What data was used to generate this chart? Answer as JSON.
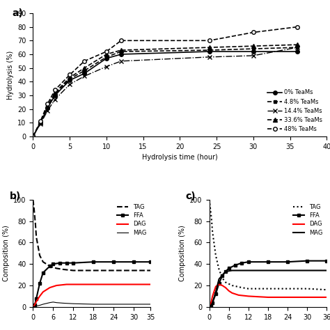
{
  "panel_a": {
    "xlabel": "Hydrolysis time (hour)",
    "ylabel": "Hydrolysis (%)",
    "xlim": [
      0,
      40
    ],
    "ylim": [
      0,
      90
    ],
    "xticks": [
      0,
      5,
      10,
      15,
      20,
      25,
      30,
      35,
      40
    ],
    "yticks": [
      0,
      10,
      20,
      30,
      40,
      50,
      60,
      70,
      80,
      90
    ],
    "series": [
      {
        "label": "0% TeaMs",
        "x": [
          0,
          1,
          2,
          3,
          5,
          7,
          10,
          12,
          24,
          30,
          36
        ],
        "y": [
          0,
          10,
          21,
          30,
          41,
          46,
          57,
          60,
          62,
          62,
          62
        ],
        "color": "black",
        "linestyle": "-",
        "marker": "o",
        "markersize": 4,
        "linewidth": 1.2,
        "mfc": "black"
      },
      {
        "label": "4.8% TeaMs",
        "x": [
          0,
          1,
          2,
          3,
          5,
          7,
          10,
          12,
          24,
          30,
          36
        ],
        "y": [
          0,
          10,
          22,
          31,
          42,
          48,
          58,
          62,
          63,
          64,
          65
        ],
        "color": "black",
        "linestyle": "--",
        "marker": "s",
        "markersize": 3,
        "linewidth": 1.2,
        "mfc": "black"
      },
      {
        "label": "14.4% TeaMs",
        "x": [
          0,
          1,
          2,
          3,
          5,
          7,
          10,
          12,
          24,
          30,
          36
        ],
        "y": [
          0,
          9,
          19,
          27,
          38,
          44,
          51,
          55,
          58,
          59,
          65
        ],
        "color": "black",
        "linestyle": "-.",
        "marker": "x",
        "markersize": 4,
        "linewidth": 1.0,
        "mfc": "black"
      },
      {
        "label": "33.6% TeaMs",
        "x": [
          0,
          1,
          2,
          3,
          5,
          7,
          10,
          12,
          24,
          30,
          36
        ],
        "y": [
          0,
          10,
          22,
          32,
          43,
          50,
          60,
          63,
          65,
          66,
          67
        ],
        "color": "black",
        "linestyle": "--",
        "marker": "^",
        "markersize": 4,
        "linewidth": 1.2,
        "mfc": "black"
      },
      {
        "label": "48% TeaMs",
        "x": [
          0,
          1,
          2,
          3,
          5,
          7,
          10,
          12,
          24,
          30,
          36
        ],
        "y": [
          0,
          11,
          24,
          34,
          45,
          55,
          62,
          70,
          70,
          76,
          80
        ],
        "color": "black",
        "linestyle": "--",
        "marker": "o",
        "markersize": 4,
        "linewidth": 1.2,
        "mfc": "white"
      }
    ]
  },
  "panel_b": {
    "xlabel": "",
    "ylabel": "Composition (%)",
    "xlim": [
      0,
      35
    ],
    "ylim": [
      0,
      100
    ],
    "xticks": [
      0,
      6,
      12,
      18,
      24,
      30,
      35
    ],
    "yticks": [
      0,
      20,
      40,
      60,
      80,
      100
    ],
    "series": [
      {
        "label": "TAG",
        "x": [
          0,
          0.3,
          0.7,
          1,
          2,
          3,
          5,
          7,
          9,
          12,
          18,
          24,
          30,
          35
        ],
        "y": [
          100,
          92,
          78,
          65,
          48,
          42,
          38,
          36,
          35,
          34,
          34,
          34,
          34,
          34
        ],
        "color": "black",
        "linestyle": "--",
        "marker": null,
        "linewidth": 1.5
      },
      {
        "label": "FFA",
        "x": [
          0,
          0.5,
          1,
          2,
          3,
          5,
          6,
          8,
          10,
          12,
          18,
          24,
          30,
          35
        ],
        "y": [
          0,
          2,
          8,
          22,
          32,
          38,
          40,
          41,
          41,
          41,
          42,
          42,
          42,
          42
        ],
        "color": "black",
        "linestyle": "-",
        "marker": "s",
        "markersize": 3,
        "linewidth": 1.5
      },
      {
        "label": "DAG",
        "x": [
          0,
          0.5,
          1,
          2,
          3,
          5,
          7,
          10,
          12,
          18,
          24,
          30,
          35
        ],
        "y": [
          0,
          2,
          5,
          10,
          14,
          18,
          20,
          21,
          21,
          21,
          21,
          21,
          21
        ],
        "color": "red",
        "linestyle": "-",
        "marker": null,
        "linewidth": 1.5
      },
      {
        "label": "MAG",
        "x": [
          0,
          0.5,
          1,
          2,
          3,
          5,
          6,
          7,
          9,
          12,
          18,
          24,
          30,
          35
        ],
        "y": [
          0,
          0.3,
          0.8,
          1.5,
          2.5,
          4,
          4.5,
          4,
          3.5,
          3,
          2.5,
          2.5,
          2.5,
          2.5
        ],
        "color": "black",
        "linestyle": "-",
        "marker": null,
        "linewidth": 0.8
      }
    ]
  },
  "panel_c": {
    "xlabel": "",
    "ylabel": "Composition (%)",
    "xlim": [
      0,
      36
    ],
    "ylim": [
      0,
      100
    ],
    "xticks": [
      0,
      6,
      12,
      18,
      24,
      30,
      36
    ],
    "yticks": [
      0,
      20,
      40,
      60,
      80,
      100
    ],
    "series": [
      {
        "label": "TAG",
        "x": [
          0,
          0.3,
          0.7,
          1,
          2,
          3,
          4,
          5,
          7,
          10,
          12,
          18,
          24,
          30,
          36
        ],
        "y": [
          100,
          93,
          82,
          70,
          48,
          35,
          27,
          23,
          20,
          18,
          17,
          17,
          17,
          17,
          16
        ],
        "color": "black",
        "linestyle": ":",
        "marker": null,
        "linewidth": 1.5
      },
      {
        "label": "FFA",
        "x": [
          0,
          0.5,
          1,
          2,
          3,
          4,
          5,
          6,
          8,
          10,
          12,
          18,
          24,
          30,
          36
        ],
        "y": [
          0,
          1,
          4,
          12,
          22,
          29,
          33,
          36,
          39,
          41,
          42,
          42,
          42,
          43,
          43
        ],
        "color": "black",
        "linestyle": "-",
        "marker": "s",
        "markersize": 3,
        "linewidth": 1.5
      },
      {
        "label": "DAG",
        "x": [
          0,
          0.5,
          1,
          2,
          3,
          4,
          5,
          6,
          7,
          9,
          12,
          18,
          24,
          30,
          36
        ],
        "y": [
          0,
          3,
          10,
          19,
          21,
          20,
          18,
          15,
          13,
          11,
          10,
          9,
          9,
          9,
          9
        ],
        "color": "red",
        "linestyle": "-",
        "marker": null,
        "linewidth": 1.5
      },
      {
        "label": "MAG",
        "x": [
          0,
          0.5,
          1,
          2,
          3,
          5,
          7,
          9,
          12,
          18,
          24,
          30,
          36
        ],
        "y": [
          0,
          1,
          4,
          14,
          26,
          33,
          34,
          34,
          34,
          34,
          34,
          34,
          34
        ],
        "color": "black",
        "linestyle": "-",
        "marker": null,
        "linewidth": 1.5
      }
    ]
  },
  "figure_bg": "#ffffff",
  "font_size": 7
}
